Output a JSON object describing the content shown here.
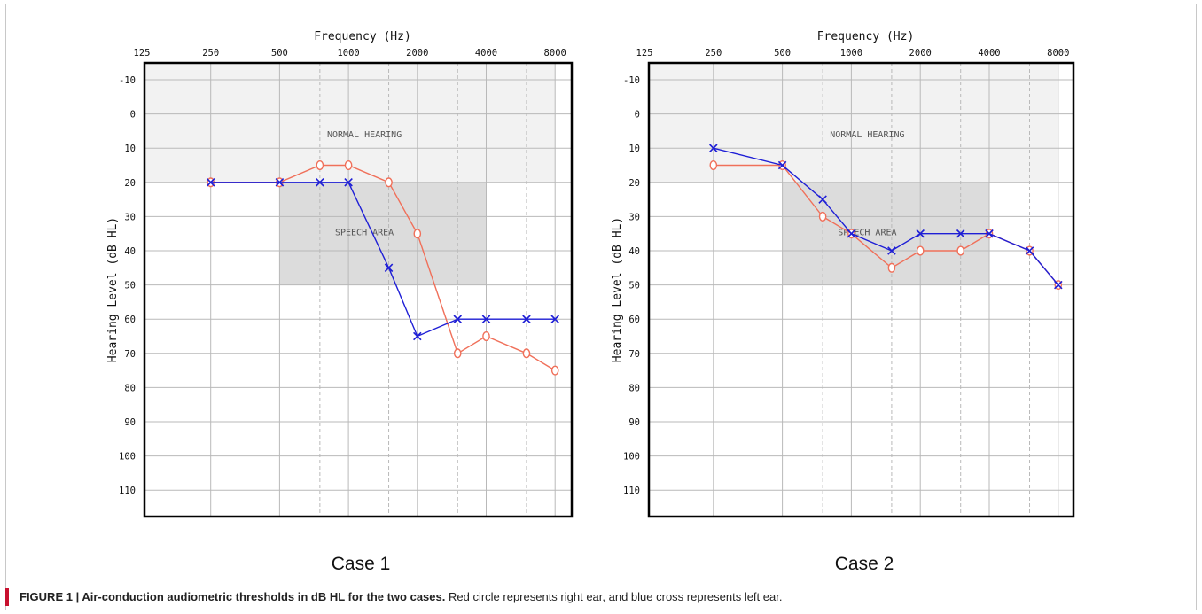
{
  "figure": {
    "caption_title": "FIGURE 1 | Air-conduction audiometric thresholds in dB HL for the two cases.",
    "caption_text": "Red circle represents right ear, and blue cross represents left ear.",
    "colors": {
      "right_ear": "#f0705a",
      "left_ear": "#1f1fd6",
      "normal_band": "#f2f2f2",
      "speech_band": "#dcdcdc"
    }
  },
  "chart_data": [
    {
      "type": "line",
      "case_label": "Case 1",
      "xlabel": "Frequency (Hz)",
      "ylabel": "Hearing Level (dB HL)",
      "x_tick_labels": [
        "125",
        "250",
        "500",
        "1000",
        "2000",
        "4000",
        "8000"
      ],
      "y_tick_labels": [
        "-10",
        "0",
        "10",
        "20",
        "30",
        "40",
        "50",
        "60",
        "70",
        "80",
        "90",
        "100",
        "110"
      ],
      "ylim": [
        -10,
        115
      ],
      "x_scale": "log2",
      "grid": true,
      "regions": [
        {
          "label": "NORMAL HEARING",
          "x_range": [
            125,
            8000
          ],
          "y_range": [
            -10,
            20
          ]
        },
        {
          "label": "SPEECH AREA",
          "x_range": [
            500,
            4000
          ],
          "y_range": [
            20,
            50
          ]
        }
      ],
      "series": [
        {
          "marker": "circle",
          "x": [
            250,
            500,
            750,
            1000,
            1500,
            2000,
            3000,
            4000,
            6000,
            8000
          ],
          "y": [
            20,
            20,
            15,
            15,
            20,
            35,
            70,
            65,
            70,
            75
          ]
        },
        {
          "marker": "cross",
          "x": [
            250,
            500,
            750,
            1000,
            1500,
            2000,
            3000,
            4000,
            6000,
            8000
          ],
          "y": [
            20,
            20,
            20,
            20,
            45,
            65,
            60,
            60,
            60,
            60
          ]
        }
      ]
    },
    {
      "type": "line",
      "case_label": "Case 2",
      "xlabel": "Frequency (Hz)",
      "ylabel": "Hearing Level (dB HL)",
      "x_tick_labels": [
        "125",
        "250",
        "500",
        "1000",
        "2000",
        "4000",
        "8000"
      ],
      "y_tick_labels": [
        "-10",
        "0",
        "10",
        "20",
        "30",
        "40",
        "50",
        "60",
        "70",
        "80",
        "90",
        "100",
        "110"
      ],
      "ylim": [
        -10,
        115
      ],
      "x_scale": "log2",
      "grid": true,
      "regions": [
        {
          "label": "NORMAL HEARING",
          "x_range": [
            125,
            8000
          ],
          "y_range": [
            -10,
            20
          ]
        },
        {
          "label": "SPEECH AREA",
          "x_range": [
            500,
            4000
          ],
          "y_range": [
            20,
            50
          ]
        }
      ],
      "series": [
        {
          "marker": "circle",
          "x": [
            250,
            500,
            750,
            1000,
            1500,
            2000,
            3000,
            4000,
            6000,
            8000
          ],
          "y": [
            15,
            15,
            30,
            35,
            45,
            40,
            40,
            35,
            40,
            50
          ]
        },
        {
          "marker": "cross",
          "x": [
            250,
            500,
            750,
            1000,
            1500,
            2000,
            3000,
            4000,
            6000,
            8000
          ],
          "y": [
            10,
            15,
            25,
            35,
            40,
            35,
            35,
            35,
            40,
            50
          ]
        }
      ]
    }
  ]
}
